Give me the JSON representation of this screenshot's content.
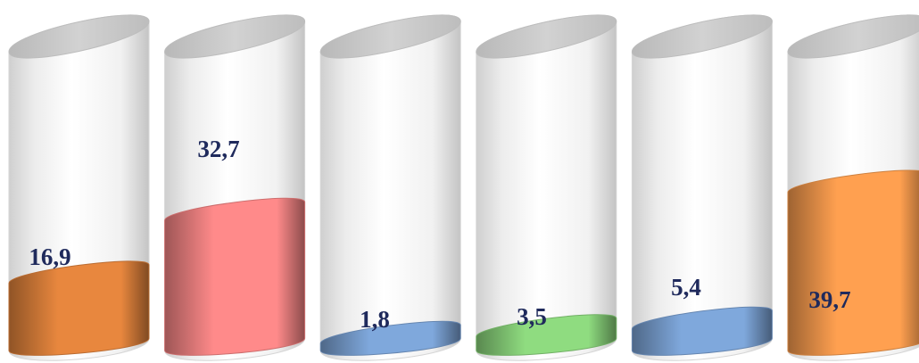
{
  "chart_data": {
    "type": "bar",
    "style": "3d-cylinder-fill",
    "values": [
      16.9,
      32.7,
      1.8,
      3.5,
      5.4,
      39.7
    ],
    "labels": [
      "16,9",
      "32,7",
      "1,8",
      "3,5",
      "5,4",
      "39,7"
    ],
    "colors": [
      "#e8873e",
      "#ff8a8a",
      "#7fa8dc",
      "#8fdc80",
      "#7fa8dc",
      "#ffa050"
    ],
    "title": "",
    "xlabel": "",
    "ylabel": "",
    "legend": "none",
    "grid": false
  }
}
